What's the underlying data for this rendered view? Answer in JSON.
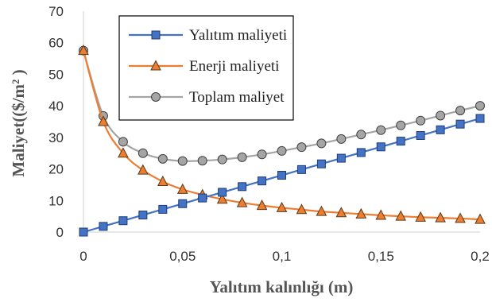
{
  "chart_data": {
    "type": "line",
    "xlabel": "Yalıtım kalınlığı (m)",
    "ylabel": "Maliyet(($/m² )",
    "xlim": [
      0,
      0.2
    ],
    "ylim": [
      0,
      70
    ],
    "xticks": [
      "0",
      "0,05",
      "0,1",
      "0,15",
      "0,2"
    ],
    "yticks": [
      "0",
      "10",
      "20",
      "30",
      "40",
      "50",
      "60",
      "70"
    ],
    "grid": false,
    "legend_position": "top-center",
    "x": [
      0,
      0.01,
      0.02,
      0.03,
      0.04,
      0.05,
      0.06,
      0.07,
      0.08,
      0.09,
      0.1,
      0.11,
      0.12,
      0.13,
      0.14,
      0.15,
      0.16,
      0.17,
      0.18,
      0.19,
      0.2
    ],
    "series": [
      {
        "name": "Yalıtım maliyeti",
        "color": "#4472C4",
        "marker": "square",
        "values": [
          0,
          1.8,
          3.6,
          5.4,
          7.2,
          9.0,
          10.8,
          12.6,
          14.4,
          16.2,
          18.0,
          19.8,
          21.6,
          23.4,
          25.2,
          27.0,
          28.8,
          30.6,
          32.4,
          34.2,
          36.0
        ]
      },
      {
        "name": "Enerji maliyeti",
        "color": "#ED7D31",
        "marker": "triangle",
        "values": [
          57.5,
          35.0,
          25.0,
          19.6,
          16.0,
          13.5,
          11.8,
          10.4,
          9.3,
          8.4,
          7.7,
          7.1,
          6.5,
          6.1,
          5.7,
          5.3,
          5.0,
          4.7,
          4.5,
          4.3,
          4.0
        ]
      },
      {
        "name": "Toplam maliyet",
        "color": "#A5A5A5",
        "marker": "circle",
        "values": [
          57.5,
          36.8,
          28.6,
          25.0,
          23.2,
          22.5,
          22.6,
          23.0,
          23.7,
          24.6,
          25.7,
          26.9,
          28.1,
          29.5,
          30.9,
          32.3,
          33.8,
          35.3,
          36.9,
          38.5,
          40.0
        ]
      }
    ]
  }
}
